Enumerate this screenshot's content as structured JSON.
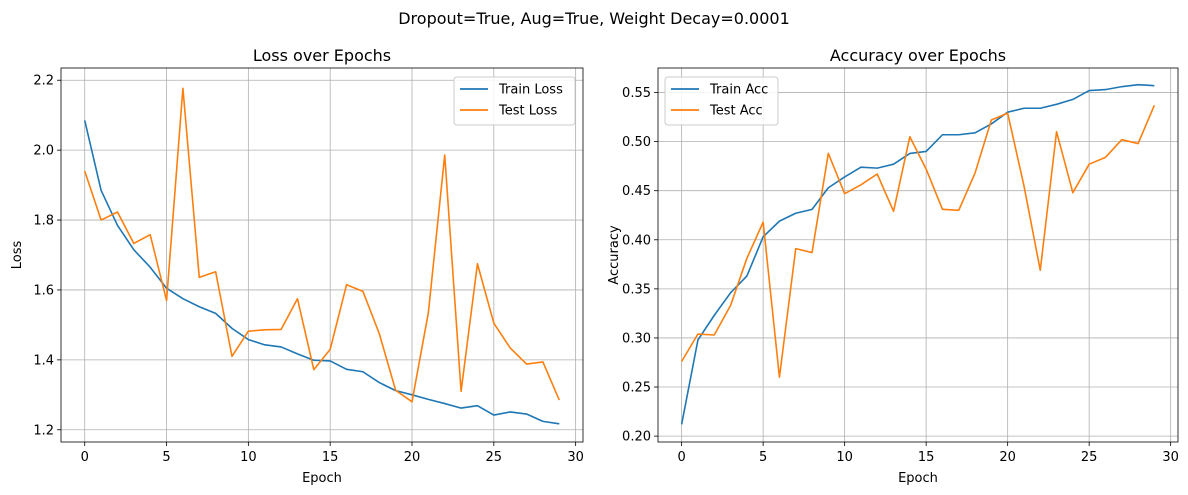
{
  "figure_title": "Dropout=True, Aug=True, Weight Decay=0.0001",
  "chart_data": [
    {
      "type": "line",
      "title": "Loss over Epochs",
      "xlabel": "Epoch",
      "ylabel": "Loss",
      "xlim": [
        -1.45,
        30.45
      ],
      "ylim": [
        1.165,
        2.235
      ],
      "xticks": [
        0,
        5,
        10,
        15,
        20,
        25,
        30
      ],
      "yticks": [
        1.2,
        1.4,
        1.6,
        1.8,
        2.0,
        2.2
      ],
      "ytick_labels": [
        "1.2",
        "1.4",
        "1.6",
        "1.8",
        "2.0",
        "2.2"
      ],
      "grid": true,
      "legend_position": "top-right",
      "x": [
        0,
        1,
        2,
        3,
        4,
        5,
        6,
        7,
        8,
        9,
        10,
        11,
        12,
        13,
        14,
        15,
        16,
        17,
        18,
        19,
        20,
        21,
        22,
        23,
        24,
        25,
        26,
        27,
        28,
        29
      ],
      "series": [
        {
          "name": "Train Loss",
          "color": "#1f77b4",
          "values": [
            2.085,
            1.885,
            1.785,
            1.715,
            1.665,
            1.605,
            1.575,
            1.552,
            1.533,
            1.49,
            1.458,
            1.443,
            1.437,
            1.417,
            1.399,
            1.397,
            1.373,
            1.366,
            1.335,
            1.312,
            1.3,
            1.287,
            1.275,
            1.262,
            1.269,
            1.242,
            1.251,
            1.245,
            1.224,
            1.217
          ]
        },
        {
          "name": "Test Loss",
          "color": "#ff7f0e",
          "values": [
            1.94,
            1.8,
            1.823,
            1.733,
            1.758,
            1.57,
            2.177,
            1.636,
            1.652,
            1.41,
            1.482,
            1.486,
            1.487,
            1.575,
            1.372,
            1.43,
            1.615,
            1.596,
            1.475,
            1.313,
            1.28,
            1.535,
            1.986,
            1.31,
            1.675,
            1.505,
            1.434,
            1.388,
            1.394,
            1.285
          ]
        }
      ]
    },
    {
      "type": "line",
      "title": "Accuracy over Epochs",
      "xlabel": "Epoch",
      "ylabel": "Accuracy",
      "xlim": [
        -1.45,
        30.45
      ],
      "ylim": [
        0.194,
        0.575
      ],
      "xticks": [
        0,
        5,
        10,
        15,
        20,
        25,
        30
      ],
      "yticks": [
        0.2,
        0.25,
        0.3,
        0.35,
        0.4,
        0.45,
        0.5,
        0.55
      ],
      "ytick_labels": [
        "0.20",
        "0.25",
        "0.30",
        "0.35",
        "0.40",
        "0.45",
        "0.50",
        "0.55"
      ],
      "grid": true,
      "legend_position": "top-left",
      "x": [
        0,
        1,
        2,
        3,
        4,
        5,
        6,
        7,
        8,
        9,
        10,
        11,
        12,
        13,
        14,
        15,
        16,
        17,
        18,
        19,
        20,
        21,
        22,
        23,
        24,
        25,
        26,
        27,
        28,
        29
      ],
      "series": [
        {
          "name": "Train Acc",
          "color": "#1f77b4",
          "values": [
            0.212,
            0.298,
            0.323,
            0.346,
            0.363,
            0.403,
            0.419,
            0.427,
            0.431,
            0.453,
            0.464,
            0.474,
            0.473,
            0.477,
            0.488,
            0.49,
            0.507,
            0.507,
            0.509,
            0.518,
            0.53,
            0.534,
            0.534,
            0.538,
            0.543,
            0.552,
            0.553,
            0.556,
            0.558,
            0.557
          ]
        },
        {
          "name": "Test Acc",
          "color": "#ff7f0e",
          "values": [
            0.276,
            0.304,
            0.303,
            0.333,
            0.381,
            0.418,
            0.26,
            0.391,
            0.387,
            0.488,
            0.447,
            0.456,
            0.467,
            0.429,
            0.505,
            0.472,
            0.431,
            0.43,
            0.468,
            0.522,
            0.529,
            0.455,
            0.369,
            0.51,
            0.448,
            0.477,
            0.484,
            0.502,
            0.498,
            0.537
          ]
        }
      ]
    }
  ]
}
